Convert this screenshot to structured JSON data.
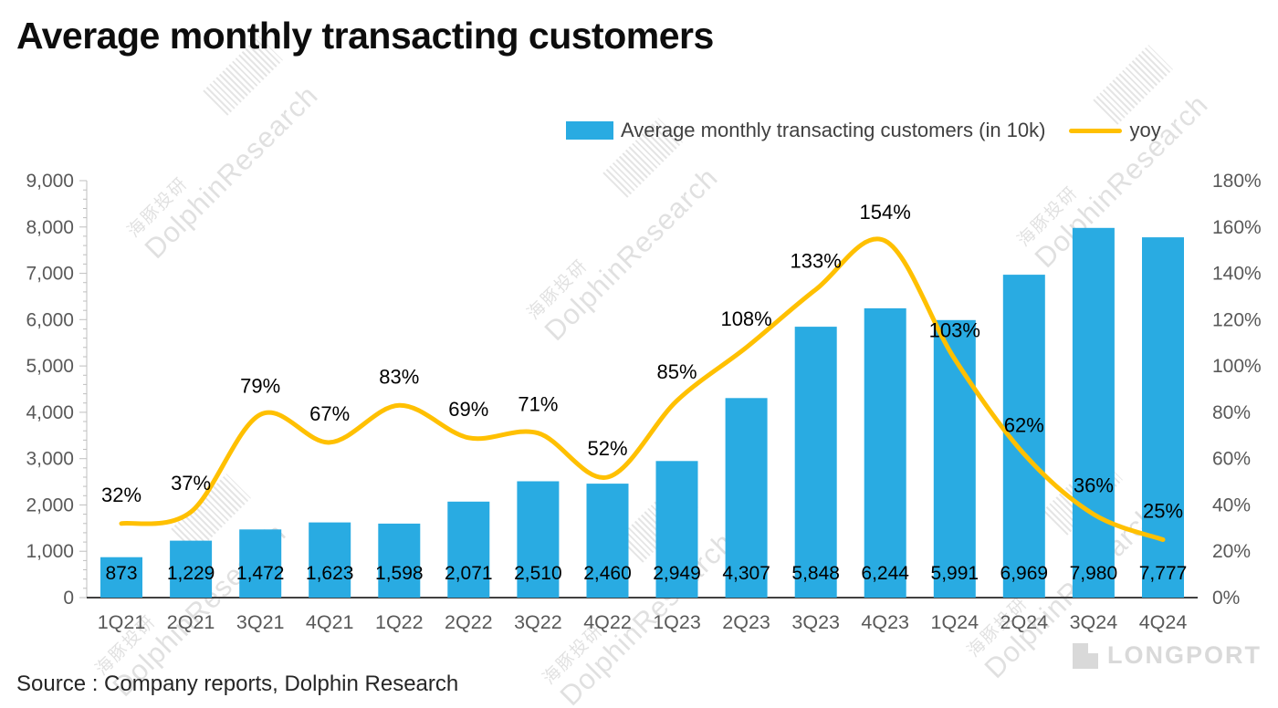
{
  "title": "Average monthly transacting customers",
  "legend": {
    "bar_label": "Average monthly transacting customers (in 10k)",
    "line_label": "yoy"
  },
  "source": "Source : Company reports, Dolphin Research",
  "watermark": {
    "cn": "海豚投研",
    "en": "DolphinResearch"
  },
  "logo_text": "LONGPORT",
  "colors": {
    "bar": "#29ABE2",
    "line": "#FFC000",
    "axis_text": "#595959",
    "value_text": "#000000"
  },
  "chart_data": {
    "type": "bar",
    "title": "Average monthly transacting customers",
    "categories": [
      "1Q21",
      "2Q21",
      "3Q21",
      "4Q21",
      "1Q22",
      "2Q22",
      "3Q22",
      "4Q22",
      "1Q23",
      "2Q23",
      "3Q23",
      "4Q23",
      "1Q24",
      "2Q24",
      "3Q24",
      "4Q24"
    ],
    "series": [
      {
        "name": "Average monthly transacting customers (in 10k)",
        "type": "bar",
        "axis": "left",
        "values": [
          873,
          1229,
          1472,
          1623,
          1598,
          2071,
          2510,
          2460,
          2949,
          4307,
          5848,
          6244,
          5991,
          6969,
          7980,
          7777
        ]
      },
      {
        "name": "yoy",
        "type": "line",
        "axis": "right",
        "unit": "%",
        "values": [
          32,
          37,
          79,
          67,
          83,
          69,
          71,
          52,
          85,
          108,
          133,
          154,
          103,
          62,
          36,
          25
        ]
      }
    ],
    "left_axis": {
      "min": 0,
      "max": 9000,
      "step": 1000
    },
    "right_axis": {
      "min": 0,
      "max": 180,
      "step": 20,
      "suffix": "%"
    },
    "legend_position": "top-right",
    "grid": false
  }
}
